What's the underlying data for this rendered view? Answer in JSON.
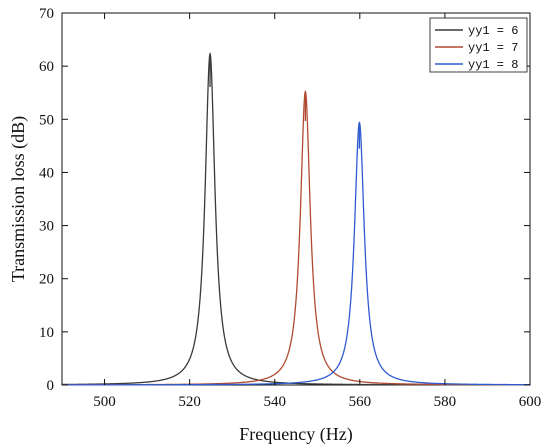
{
  "chart_data": {
    "type": "line",
    "title": "",
    "xlabel": "Frequency (Hz)",
    "ylabel": "Transmission loss (dB)",
    "xlim": [
      490,
      600
    ],
    "ylim": [
      0,
      70
    ],
    "x_ticks": [
      500,
      520,
      540,
      560,
      580,
      600
    ],
    "y_ticks": [
      0,
      10,
      20,
      30,
      40,
      50,
      60,
      70
    ],
    "x_tick_labels": [
      "500",
      "520",
      "540",
      "560",
      "580",
      "600"
    ],
    "y_tick_labels": [
      "0",
      "10",
      "20",
      "30",
      "40",
      "50",
      "60",
      "70"
    ],
    "grid": false,
    "legend": "top-right",
    "series": [
      {
        "name": "yy1 = 6",
        "color": "#3a3a3a",
        "peak_x": 524.8,
        "peak_y": 62.3,
        "width": 1.4
      },
      {
        "name": "yy1 = 7",
        "color": "#b04a30",
        "peak_x": 547.2,
        "peak_y": 55.2,
        "width": 1.4
      },
      {
        "name": "yy1 = 8",
        "color": "#2f5bd0",
        "peak_x": 559.9,
        "peak_y": 49.4,
        "width": 1.4
      }
    ]
  }
}
